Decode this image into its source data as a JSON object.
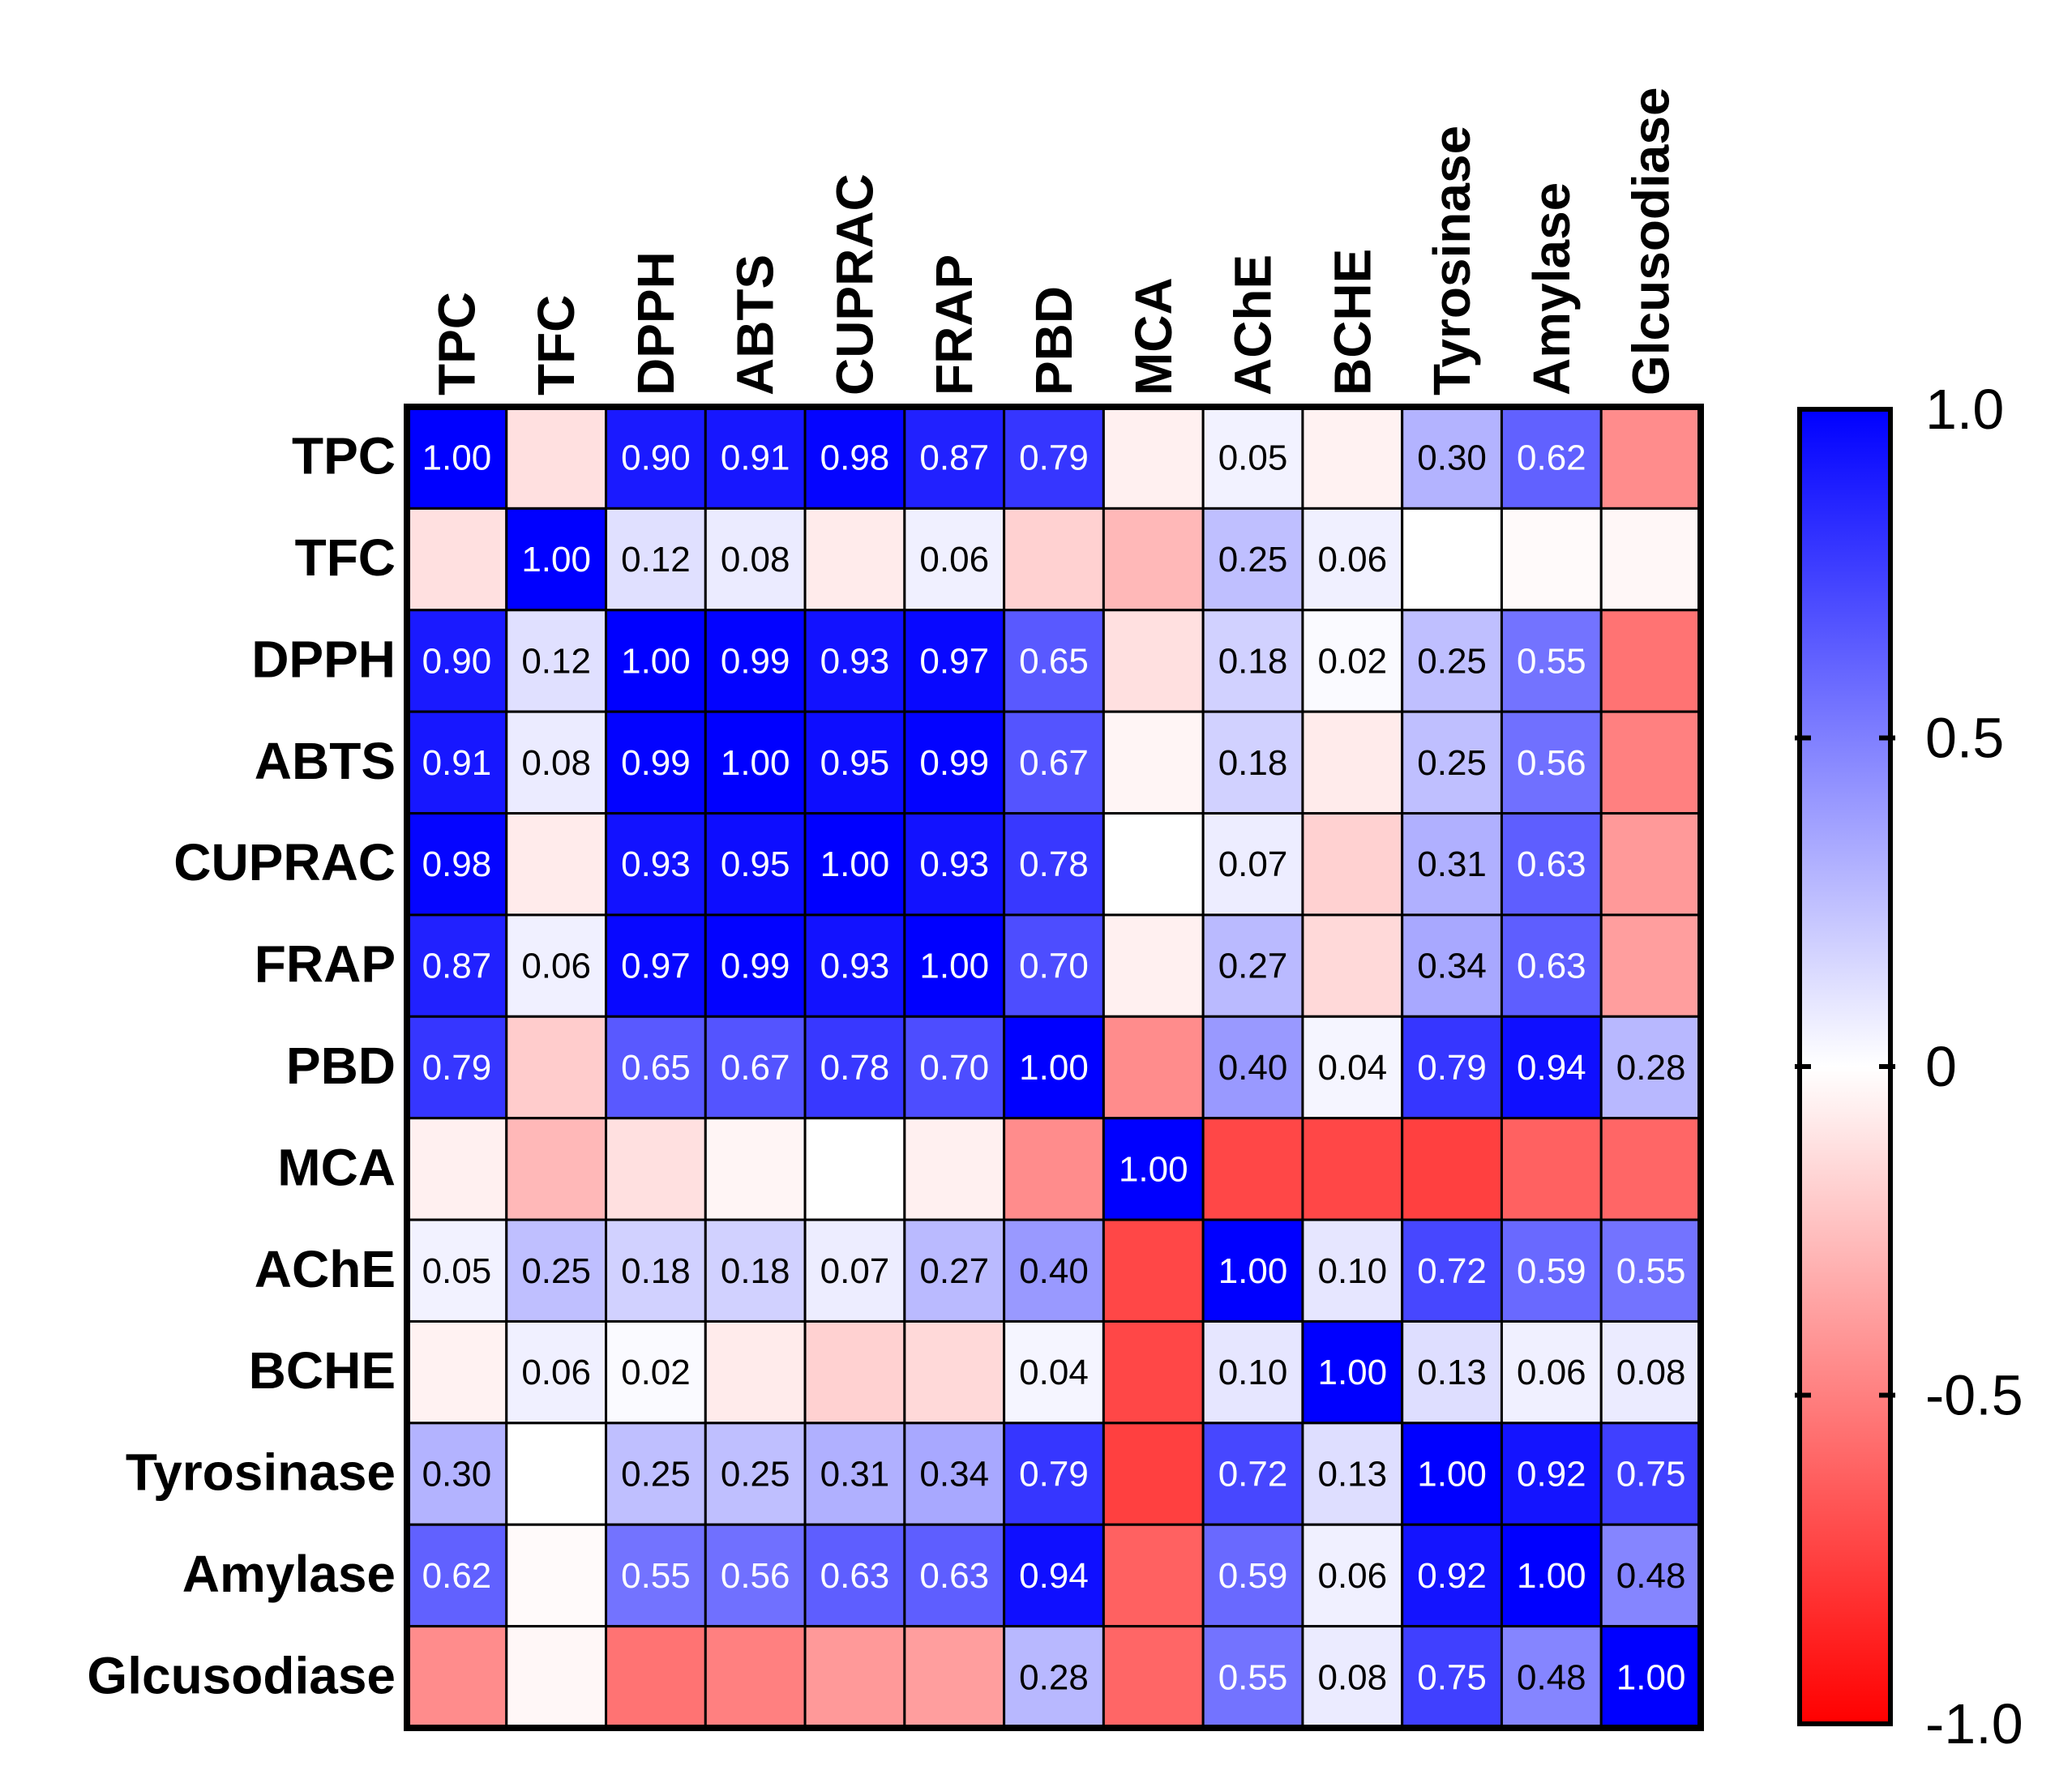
{
  "chart_data": {
    "type": "heatmap",
    "title": "",
    "xlabel": "",
    "ylabel": "",
    "rows": [
      "TPC",
      "TFC",
      "DPPH",
      "ABTS",
      "CUPRAC",
      "FRAP",
      "PBD",
      "MCA",
      "AChE",
      "BCHE",
      "Tyrosinase",
      "Amylase",
      "Glcusodiase"
    ],
    "columns": [
      "TPC",
      "TFC",
      "DPPH",
      "ABTS",
      "CUPRAC",
      "FRAP",
      "PBD",
      "MCA",
      "AChE",
      "BCHE",
      "Tyrosinase",
      "Amylase",
      "Glcusodiase"
    ],
    "values": [
      [
        1.0,
        -0.12,
        0.9,
        0.91,
        0.98,
        0.87,
        0.79,
        -0.06,
        0.05,
        -0.05,
        0.3,
        0.62,
        -0.45
      ],
      [
        -0.12,
        1.0,
        0.12,
        0.08,
        -0.08,
        0.06,
        -0.18,
        -0.28,
        0.25,
        0.06,
        0.0,
        -0.02,
        -0.03
      ],
      [
        0.9,
        0.12,
        1.0,
        0.99,
        0.93,
        0.97,
        0.65,
        -0.12,
        0.18,
        0.02,
        0.25,
        0.55,
        -0.55
      ],
      [
        0.91,
        0.08,
        0.99,
        1.0,
        0.95,
        0.99,
        0.67,
        -0.04,
        0.18,
        -0.08,
        0.25,
        0.56,
        -0.5
      ],
      [
        0.98,
        -0.08,
        0.93,
        0.95,
        1.0,
        0.93,
        0.78,
        0.0,
        0.07,
        -0.18,
        0.31,
        0.63,
        -0.4
      ],
      [
        0.87,
        0.06,
        0.97,
        0.99,
        0.93,
        1.0,
        0.7,
        -0.06,
        0.27,
        -0.15,
        0.34,
        0.63,
        -0.38
      ],
      [
        0.79,
        -0.2,
        0.65,
        0.67,
        0.78,
        0.7,
        1.0,
        -0.45,
        0.4,
        0.04,
        0.79,
        0.94,
        0.28
      ],
      [
        -0.06,
        -0.28,
        -0.12,
        -0.04,
        0.0,
        -0.06,
        -0.45,
        1.0,
        -0.72,
        -0.72,
        -0.75,
        -0.62,
        -0.6
      ],
      [
        0.05,
        0.25,
        0.18,
        0.18,
        0.07,
        0.27,
        0.4,
        -0.72,
        1.0,
        0.1,
        0.72,
        0.59,
        0.55
      ],
      [
        -0.05,
        0.06,
        0.02,
        -0.08,
        -0.18,
        -0.15,
        0.04,
        -0.72,
        0.1,
        1.0,
        0.13,
        0.06,
        0.08
      ],
      [
        0.3,
        0.0,
        0.25,
        0.25,
        0.31,
        0.34,
        0.79,
        -0.75,
        0.72,
        0.13,
        1.0,
        0.92,
        0.75
      ],
      [
        0.62,
        -0.02,
        0.55,
        0.56,
        0.63,
        0.63,
        0.94,
        -0.62,
        0.59,
        0.06,
        0.92,
        1.0,
        0.48
      ],
      [
        -0.45,
        -0.03,
        -0.55,
        -0.5,
        -0.4,
        -0.38,
        0.28,
        -0.6,
        0.55,
        0.08,
        0.75,
        0.48,
        1.0
      ]
    ],
    "labels": [
      [
        "1.00",
        "",
        "0.90",
        "0.91",
        "0.98",
        "0.87",
        "0.79",
        "",
        "0.05",
        "",
        "0.30",
        "0.62",
        ""
      ],
      [
        "",
        "1.00",
        "0.12",
        "0.08",
        "",
        "0.06",
        "",
        "",
        "0.25",
        "0.06",
        "",
        "",
        ""
      ],
      [
        "0.90",
        "0.12",
        "1.00",
        "0.99",
        "0.93",
        "0.97",
        "0.65",
        "",
        "0.18",
        "0.02",
        "0.25",
        "0.55",
        ""
      ],
      [
        "0.91",
        "0.08",
        "0.99",
        "1.00",
        "0.95",
        "0.99",
        "0.67",
        "",
        "0.18",
        "",
        "0.25",
        "0.56",
        ""
      ],
      [
        "0.98",
        "",
        "0.93",
        "0.95",
        "1.00",
        "0.93",
        "0.78",
        "",
        "0.07",
        "",
        "0.31",
        "0.63",
        ""
      ],
      [
        "0.87",
        "0.06",
        "0.97",
        "0.99",
        "0.93",
        "1.00",
        "0.70",
        "",
        "0.27",
        "",
        "0.34",
        "0.63",
        ""
      ],
      [
        "0.79",
        "",
        "0.65",
        "0.67",
        "0.78",
        "0.70",
        "1.00",
        "",
        "0.40",
        "0.04",
        "0.79",
        "0.94",
        "0.28"
      ],
      [
        "",
        "",
        "",
        "",
        "",
        "",
        "",
        "1.00",
        "",
        "",
        "",
        "",
        ""
      ],
      [
        "0.05",
        "0.25",
        "0.18",
        "0.18",
        "0.07",
        "0.27",
        "0.40",
        "",
        "1.00",
        "0.10",
        "0.72",
        "0.59",
        "0.55"
      ],
      [
        "",
        "0.06",
        "0.02",
        "",
        "",
        "",
        "0.04",
        "",
        "0.10",
        "1.00",
        "0.13",
        "0.06",
        "0.08"
      ],
      [
        "0.30",
        "",
        "0.25",
        "0.25",
        "0.31",
        "0.34",
        "0.79",
        "",
        "0.72",
        "0.13",
        "1.00",
        "0.92",
        "0.75"
      ],
      [
        "0.62",
        "",
        "0.55",
        "0.56",
        "0.63",
        "0.63",
        "0.94",
        "",
        "0.59",
        "0.06",
        "0.92",
        "1.00",
        "0.48"
      ],
      [
        "",
        "",
        "",
        "",
        "",
        "",
        "0.28",
        "",
        "0.55",
        "0.08",
        "0.75",
        "0.48",
        "1.00"
      ]
    ],
    "colorbar": {
      "range": [
        -1.0,
        1.0
      ],
      "ticks": [
        1.0,
        0.5,
        0,
        -0.5,
        -1.0
      ],
      "tick_labels": [
        "1.0",
        "0.5",
        "0",
        "-0.5",
        "-1.0"
      ],
      "colors": {
        "negative": "#ff0000",
        "zero": "#ffffff",
        "positive": "#0000ff"
      }
    }
  }
}
